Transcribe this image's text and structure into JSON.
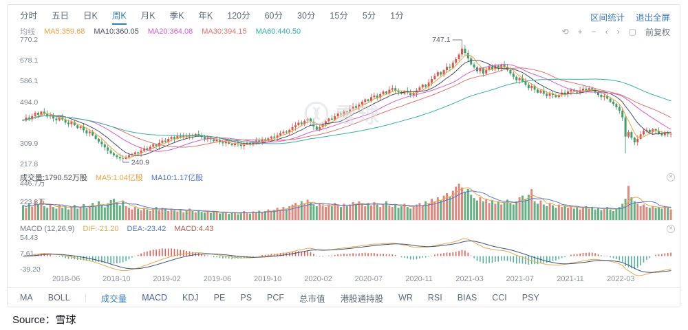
{
  "header": {
    "periods": [
      "分时",
      "五日",
      "日K",
      "周K",
      "月K",
      "季K",
      "年K",
      "120分",
      "60分",
      "30分",
      "15分",
      "5分",
      "1分"
    ],
    "active_period": "周K",
    "stat_link": "区间统计",
    "exit_link": "退出全屏",
    "toolbar": [
      {
        "name": "reset-icon",
        "glyph": "⟲"
      },
      {
        "name": "zoom-in-icon",
        "glyph": "+"
      },
      {
        "name": "zoom-out-icon",
        "glyph": "−"
      },
      {
        "name": "pan-left-icon",
        "glyph": "‹"
      },
      {
        "name": "pan-right-icon",
        "glyph": "›"
      },
      {
        "name": "screenshot-icon",
        "glyph": "▢"
      }
    ],
    "adjust_label": "前复权"
  },
  "ma_legend": {
    "title": "均线",
    "items": [
      {
        "text": "MA5:359.68",
        "color": "#efa33c"
      },
      {
        "text": "MA10:360.05",
        "color": "#4a4e63"
      },
      {
        "text": "MA20:364.08",
        "color": "#d45bc8"
      },
      {
        "text": "MA30:394.15",
        "color": "#e0716f"
      },
      {
        "text": "MA60:440.50",
        "color": "#2fb3a2"
      }
    ]
  },
  "price_pane": {
    "ticks": [
      "770.2",
      "678.1",
      "586.1",
      "494.0",
      "309.9",
      "217.8"
    ],
    "high_label": "747.1",
    "low_label": "240.9"
  },
  "volume_pane": {
    "legend": {
      "main": "成交量:1790.52万股",
      "ma5": "MA5:1.04亿股",
      "ma10": "MA10:1.17亿股"
    },
    "ticks": [
      "446.7万",
      "223.3万"
    ]
  },
  "macd_pane": {
    "legend": {
      "title": "MACD (12,26,9)",
      "dif": "DIF:-21.20",
      "dea": "DEA:-23.42",
      "macd": "MACD:4.43"
    },
    "ticks": [
      "54.43",
      "7.61",
      "-39.20"
    ]
  },
  "x_axis_labels": [
    "2018-06",
    "2018-10",
    "2019-02",
    "2019-06",
    "2019-10",
    "2020-02",
    "2020-07",
    "2020-11",
    "2021-03",
    "2021-07",
    "2021-11",
    "2022-03"
  ],
  "bottom_bar": {
    "overlays": [
      "MA",
      "BOLL"
    ],
    "indicators": [
      "成交量",
      "MACD",
      "KDJ",
      "PE",
      "PS",
      "PCF",
      "总市值",
      "港股通持股",
      "WR",
      "RSI",
      "BIAS",
      "CCI",
      "PSY"
    ],
    "active": [
      "成交量",
      "MACD"
    ]
  },
  "watermark_text": "雪球",
  "source_label": "Source：雪球",
  "colors": {
    "up": "#d9584c",
    "down": "#3f9e68",
    "vol_up": "#e0887d",
    "vol_down": "#63b183",
    "ma5": "#efa33c",
    "ma10_price": "#4a4e63",
    "ma20": "#d45bc8",
    "ma30": "#e0716f",
    "ma60": "#2fb3a2",
    "vol_ma5": "#efa33c",
    "vol_ma10": "#4f74d8",
    "dif": "#e3a94c",
    "dea": "#39507b",
    "hist_pos": "#de5c50",
    "hist_neg": "#55b39c",
    "accent": "#2c7dc4"
  },
  "chart_data": {
    "type": "candlestick",
    "frequency": "weekly",
    "title": "",
    "x_labels": [
      "2018-06",
      "2018-10",
      "2019-02",
      "2019-06",
      "2019-10",
      "2020-02",
      "2020-07",
      "2020-11",
      "2021-03",
      "2021-07",
      "2021-11",
      "2022-03"
    ],
    "price_axis_ticks": [
      770.2,
      678.1,
      586.1,
      494.0,
      309.9,
      217.8
    ],
    "volume_axis_ticks_wan": [
      446.7,
      223.3
    ],
    "macd_axis_ticks": [
      54.43,
      7.61,
      -39.2
    ],
    "high_point": {
      "index": 145,
      "value": 747.1
    },
    "low_point": {
      "index": 33,
      "value": 240.9
    },
    "wick_overrides": [
      {
        "index": 199,
        "low": 266
      }
    ],
    "legend_values": {
      "ma5": 359.68,
      "ma10": 360.05,
      "ma20": 364.08,
      "ma30": 394.15,
      "ma60": 440.5,
      "volume_wan": 1790.52,
      "vol_ma5_yi": 1.04,
      "vol_ma10_yi": 1.17,
      "dif": -21.2,
      "dea": -23.42,
      "macd": 4.43
    },
    "closes": [
      412,
      425,
      418,
      432,
      446,
      438,
      452,
      444,
      430,
      437,
      421,
      413,
      426,
      417,
      403,
      396,
      406,
      391,
      379,
      386,
      369,
      356,
      363,
      346,
      331,
      319,
      306,
      293,
      279,
      266,
      258,
      250,
      244,
      242,
      247,
      258,
      263,
      271,
      266,
      279,
      289,
      283,
      296,
      306,
      299,
      313,
      323,
      318,
      331,
      339,
      331,
      343,
      337,
      346,
      341,
      349,
      343,
      353,
      346,
      339,
      331,
      337,
      329,
      321,
      327,
      316,
      311,
      319,
      309,
      303,
      311,
      306,
      299,
      307,
      313,
      306,
      316,
      323,
      319,
      329,
      323,
      333,
      341,
      336,
      346,
      356,
      363,
      359,
      371,
      383,
      391,
      403,
      396,
      411,
      421,
      406,
      386,
      371,
      383,
      396,
      409,
      421,
      416,
      431,
      443,
      439,
      453,
      449,
      463,
      476,
      469,
      483,
      496,
      506,
      499,
      516,
      523,
      513,
      529,
      541,
      533,
      549,
      556,
      546,
      539,
      531,
      543,
      536,
      526,
      533,
      546,
      559,
      571,
      563,
      581,
      596,
      611,
      626,
      616,
      636,
      651,
      646,
      669,
      685,
      705,
      731,
      712,
      688,
      661,
      648,
      631,
      646,
      621,
      636,
      651,
      641,
      656,
      646,
      661,
      649,
      636,
      621,
      606,
      591,
      601,
      586,
      571,
      556,
      566,
      549,
      536,
      546,
      531,
      521,
      533,
      526,
      516,
      526,
      536,
      529,
      541,
      549,
      543,
      536,
      546,
      553,
      546,
      556,
      549,
      539,
      526,
      516,
      521,
      509,
      496,
      486,
      471,
      456,
      426,
      341,
      361,
      336,
      316,
      331,
      351,
      366,
      371,
      361,
      374,
      367,
      354,
      347,
      357,
      351,
      354
    ],
    "volumes_wan": [
      180,
      150,
      210,
      165,
      240,
      190,
      260,
      170,
      150,
      200,
      160,
      140,
      190,
      150,
      170,
      130,
      160,
      185,
      140,
      165,
      195,
      150,
      175,
      210,
      160,
      230,
      185,
      155,
      205,
      245,
      260,
      220,
      180,
      240,
      170,
      150,
      130,
      160,
      140,
      120,
      150,
      130,
      110,
      140,
      160,
      120,
      150,
      135,
      110,
      140,
      120,
      105,
      130,
      95,
      120,
      140,
      110,
      95,
      120,
      100,
      90,
      110,
      85,
      105,
      95,
      80,
      100,
      90,
      75,
      95,
      85,
      70,
      95,
      110,
      90,
      80,
      105,
      95,
      115,
      90,
      110,
      130,
      105,
      125,
      150,
      120,
      160,
      130,
      170,
      190,
      210,
      180,
      230,
      200,
      250,
      220,
      190,
      170,
      200,
      180,
      160,
      190,
      170,
      210,
      180,
      160,
      200,
      170,
      190,
      220,
      200,
      230,
      190,
      170,
      210,
      180,
      220,
      190,
      160,
      200,
      230,
      180,
      160,
      190,
      150,
      170,
      200,
      160,
      140,
      170,
      190,
      210,
      180,
      230,
      200,
      260,
      230,
      280,
      240,
      300,
      330,
      290,
      360,
      410,
      447,
      400,
      350,
      380,
      310,
      270,
      240,
      280,
      230,
      260,
      210,
      240,
      200,
      230,
      190,
      220,
      250,
      210,
      190,
      230,
      280,
      300,
      260,
      310,
      380,
      230,
      200,
      240,
      190,
      170,
      210,
      180,
      150,
      190,
      160,
      180,
      150,
      170,
      140,
      160,
      130,
      150,
      170,
      140,
      160,
      130,
      150,
      120,
      140,
      160,
      130,
      110,
      140,
      160,
      200,
      260,
      420,
      280,
      230,
      200,
      170,
      190,
      160,
      150,
      170,
      150,
      160,
      140,
      170,
      150,
      130
    ]
  }
}
